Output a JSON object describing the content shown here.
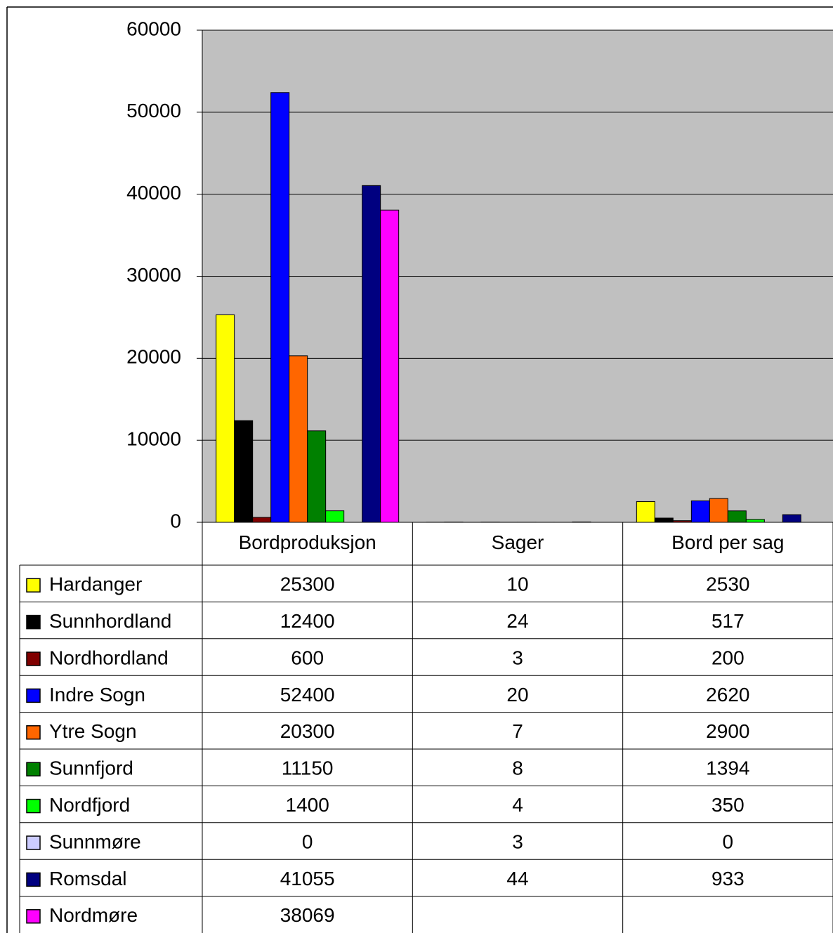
{
  "chart_data": {
    "type": "bar",
    "categories": [
      "Bordproduksjon",
      "Sager",
      "Bord per sag"
    ],
    "series": [
      {
        "name": "Hardanger",
        "color": "#ffff00",
        "values": [
          25300,
          10,
          2530
        ]
      },
      {
        "name": "Sunnhordland",
        "color": "#000000",
        "values": [
          12400,
          24,
          517
        ]
      },
      {
        "name": "Nordhordland",
        "color": "#800000",
        "values": [
          600,
          3,
          200
        ]
      },
      {
        "name": "Indre Sogn",
        "color": "#0000ff",
        "values": [
          52400,
          20,
          2620
        ]
      },
      {
        "name": "Ytre Sogn",
        "color": "#ff6600",
        "values": [
          20300,
          7,
          2900
        ]
      },
      {
        "name": "Sunnfjord",
        "color": "#008000",
        "values": [
          11150,
          8,
          1394
        ]
      },
      {
        "name": "Nordfjord",
        "color": "#00ff00",
        "values": [
          1400,
          4,
          350
        ]
      },
      {
        "name": "Sunnmøre",
        "color": "#ccccff",
        "values": [
          0,
          3,
          0
        ]
      },
      {
        "name": "Romsdal",
        "color": "#000080",
        "values": [
          41055,
          44,
          933
        ]
      },
      {
        "name": "Nordmøre",
        "color": "#ff00ff",
        "values": [
          38069,
          null,
          null
        ]
      }
    ],
    "ylim": [
      0,
      60000
    ],
    "yticks": [
      0,
      10000,
      20000,
      30000,
      40000,
      50000,
      60000
    ],
    "grid": true,
    "plot_background": "#c0c0c0"
  }
}
